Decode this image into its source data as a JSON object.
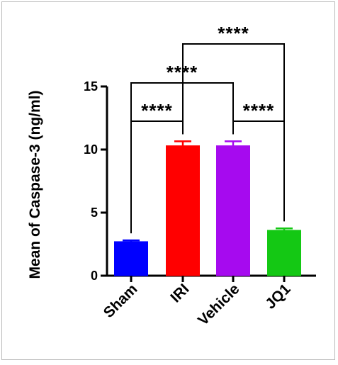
{
  "chart_data": {
    "type": "bar",
    "ylabel": "Mean of Caspase-3 (ng/ml)",
    "xlabel": "",
    "ylim": [
      0,
      15
    ],
    "yticks": [
      0,
      5,
      10,
      15
    ],
    "categories": [
      "Sham",
      "IRI",
      "Vehicle",
      "JQ1"
    ],
    "values": [
      2.7,
      10.3,
      10.3,
      3.6
    ],
    "errors": [
      0.1,
      0.35,
      0.35,
      0.15
    ],
    "colors": [
      "#0000ff",
      "#ff0000",
      "#a60aef",
      "#14c814"
    ],
    "significance": [
      {
        "from": 0,
        "to": 1,
        "label": "****"
      },
      {
        "from": 2,
        "to": 3,
        "label": "****"
      },
      {
        "from": 0,
        "to": 2,
        "label": "****"
      },
      {
        "from": 1,
        "to": 3,
        "label": "****"
      }
    ]
  }
}
